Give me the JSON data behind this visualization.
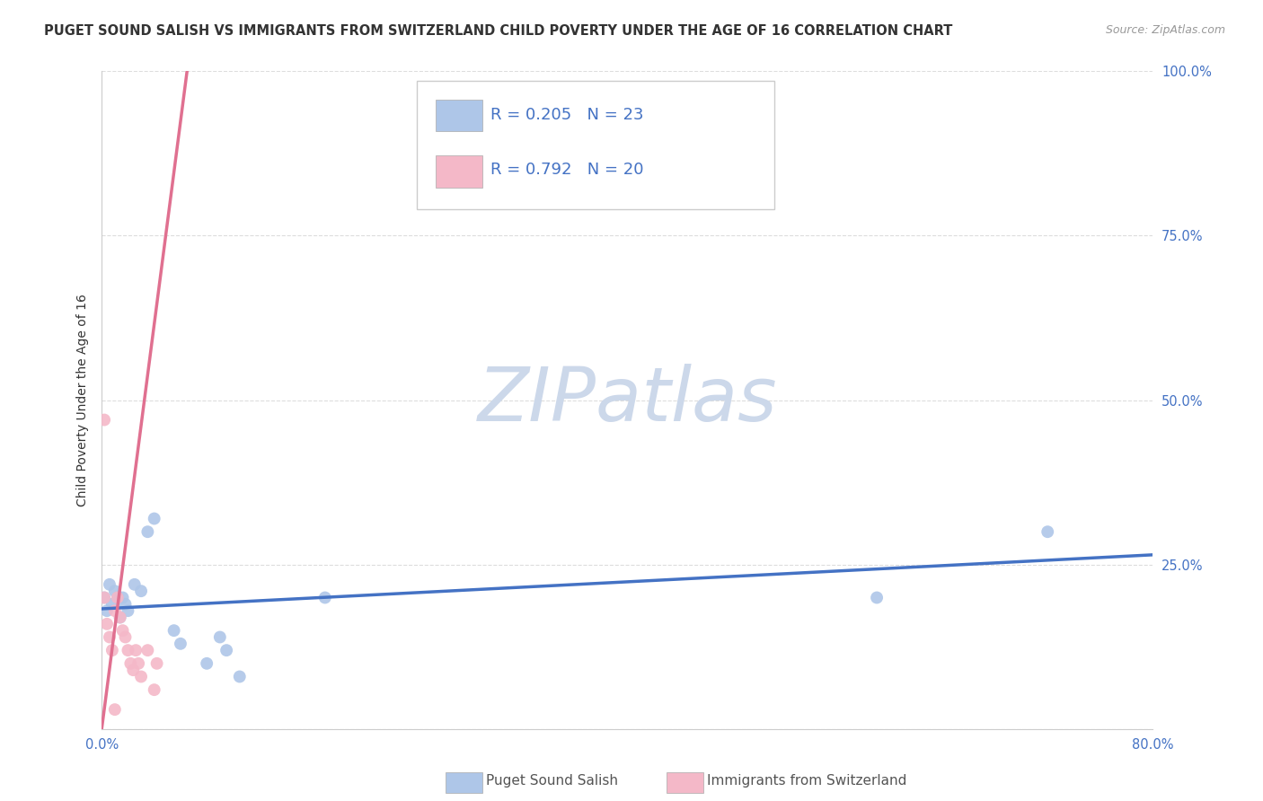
{
  "title": "PUGET SOUND SALISH VS IMMIGRANTS FROM SWITZERLAND CHILD POVERTY UNDER THE AGE OF 16 CORRELATION CHART",
  "source": "Source: ZipAtlas.com",
  "ylabel": "Child Poverty Under the Age of 16",
  "watermark": "ZIPatlas",
  "blue_label": "Puget Sound Salish",
  "pink_label": "Immigrants from Switzerland",
  "blue_R": 0.205,
  "blue_N": 23,
  "pink_R": 0.792,
  "pink_N": 20,
  "xlim": [
    0.0,
    0.8
  ],
  "ylim": [
    0.0,
    1.0
  ],
  "ytick_positions": [
    0.0,
    0.25,
    0.5,
    0.75,
    1.0
  ],
  "yticklabels_right": [
    "",
    "25.0%",
    "50.0%",
    "75.0%",
    "100.0%"
  ],
  "blue_x": [
    0.002,
    0.004,
    0.006,
    0.008,
    0.01,
    0.012,
    0.014,
    0.016,
    0.018,
    0.02,
    0.025,
    0.03,
    0.035,
    0.04,
    0.055,
    0.06,
    0.08,
    0.09,
    0.095,
    0.105,
    0.17,
    0.59,
    0.72
  ],
  "blue_y": [
    0.2,
    0.18,
    0.22,
    0.19,
    0.21,
    0.2,
    0.17,
    0.2,
    0.19,
    0.18,
    0.22,
    0.21,
    0.3,
    0.32,
    0.15,
    0.13,
    0.1,
    0.14,
    0.12,
    0.08,
    0.2,
    0.2,
    0.3
  ],
  "pink_x": [
    0.002,
    0.004,
    0.006,
    0.008,
    0.01,
    0.012,
    0.014,
    0.016,
    0.018,
    0.02,
    0.022,
    0.024,
    0.026,
    0.028,
    0.03,
    0.035,
    0.04,
    0.042,
    0.002,
    0.01
  ],
  "pink_y": [
    0.2,
    0.16,
    0.14,
    0.12,
    0.18,
    0.2,
    0.17,
    0.15,
    0.14,
    0.12,
    0.1,
    0.09,
    0.12,
    0.1,
    0.08,
    0.12,
    0.06,
    0.1,
    0.47,
    0.03
  ],
  "blue_line_x": [
    0.0,
    0.8
  ],
  "blue_line_y": [
    0.183,
    0.265
  ],
  "pink_line_x": [
    0.0,
    0.065
  ],
  "pink_line_y": [
    0.0,
    1.0
  ],
  "blue_scatter_color": "#aec6e8",
  "pink_scatter_color": "#f4b8c8",
  "blue_line_color": "#4472c4",
  "pink_line_color": "#e07090",
  "title_color": "#333333",
  "source_color": "#999999",
  "axis_color": "#4472c4",
  "legend_text_color": "#4472c4",
  "bottom_legend_text_color": "#555555",
  "title_fontsize": 10.5,
  "source_fontsize": 9,
  "axis_label_fontsize": 10,
  "tick_fontsize": 10.5,
  "legend_fontsize": 13,
  "marker_size": 100,
  "grid_color": "#dddddd",
  "background_color": "#ffffff",
  "watermark_color": "#ccd8ea",
  "watermark_fontsize": 60
}
